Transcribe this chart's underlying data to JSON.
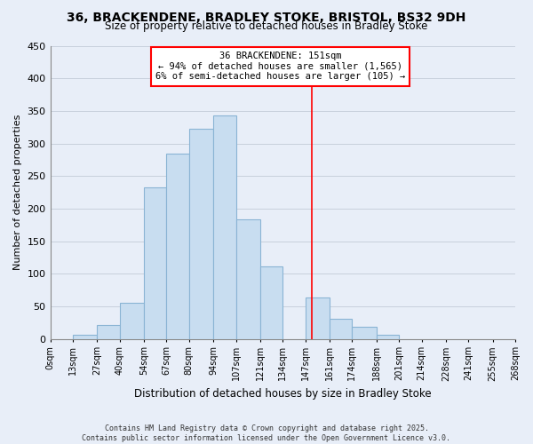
{
  "title": "36, BRACKENDENE, BRADLEY STOKE, BRISTOL, BS32 9DH",
  "subtitle": "Size of property relative to detached houses in Bradley Stoke",
  "xlabel": "Distribution of detached houses by size in Bradley Stoke",
  "ylabel": "Number of detached properties",
  "bar_color": "#c8ddf0",
  "bar_edge_color": "#8ab4d4",
  "background_color": "#e8eef8",
  "grid_color": "#c8d0dc",
  "bins": [
    0,
    13,
    27,
    40,
    54,
    67,
    80,
    94,
    107,
    121,
    134,
    147,
    161,
    174,
    188,
    201,
    214,
    228,
    241,
    255,
    268
  ],
  "bin_labels": [
    "0sqm",
    "13sqm",
    "27sqm",
    "40sqm",
    "54sqm",
    "67sqm",
    "80sqm",
    "94sqm",
    "107sqm",
    "121sqm",
    "134sqm",
    "147sqm",
    "161sqm",
    "174sqm",
    "188sqm",
    "201sqm",
    "214sqm",
    "228sqm",
    "241sqm",
    "255sqm",
    "268sqm"
  ],
  "values": [
    0,
    6,
    21,
    55,
    233,
    284,
    322,
    343,
    184,
    111,
    0,
    63,
    31,
    18,
    6,
    0,
    0,
    0,
    0,
    0
  ],
  "ylim": [
    0,
    450
  ],
  "yticks": [
    0,
    50,
    100,
    150,
    200,
    250,
    300,
    350,
    400,
    450
  ],
  "property_line_x": 151,
  "annotation_title": "36 BRACKENDENE: 151sqm",
  "annotation_line1": "← 94% of detached houses are smaller (1,565)",
  "annotation_line2": "6% of semi-detached houses are larger (105) →",
  "vline_color": "red",
  "footnote1": "Contains HM Land Registry data © Crown copyright and database right 2025.",
  "footnote2": "Contains public sector information licensed under the Open Government Licence v3.0."
}
